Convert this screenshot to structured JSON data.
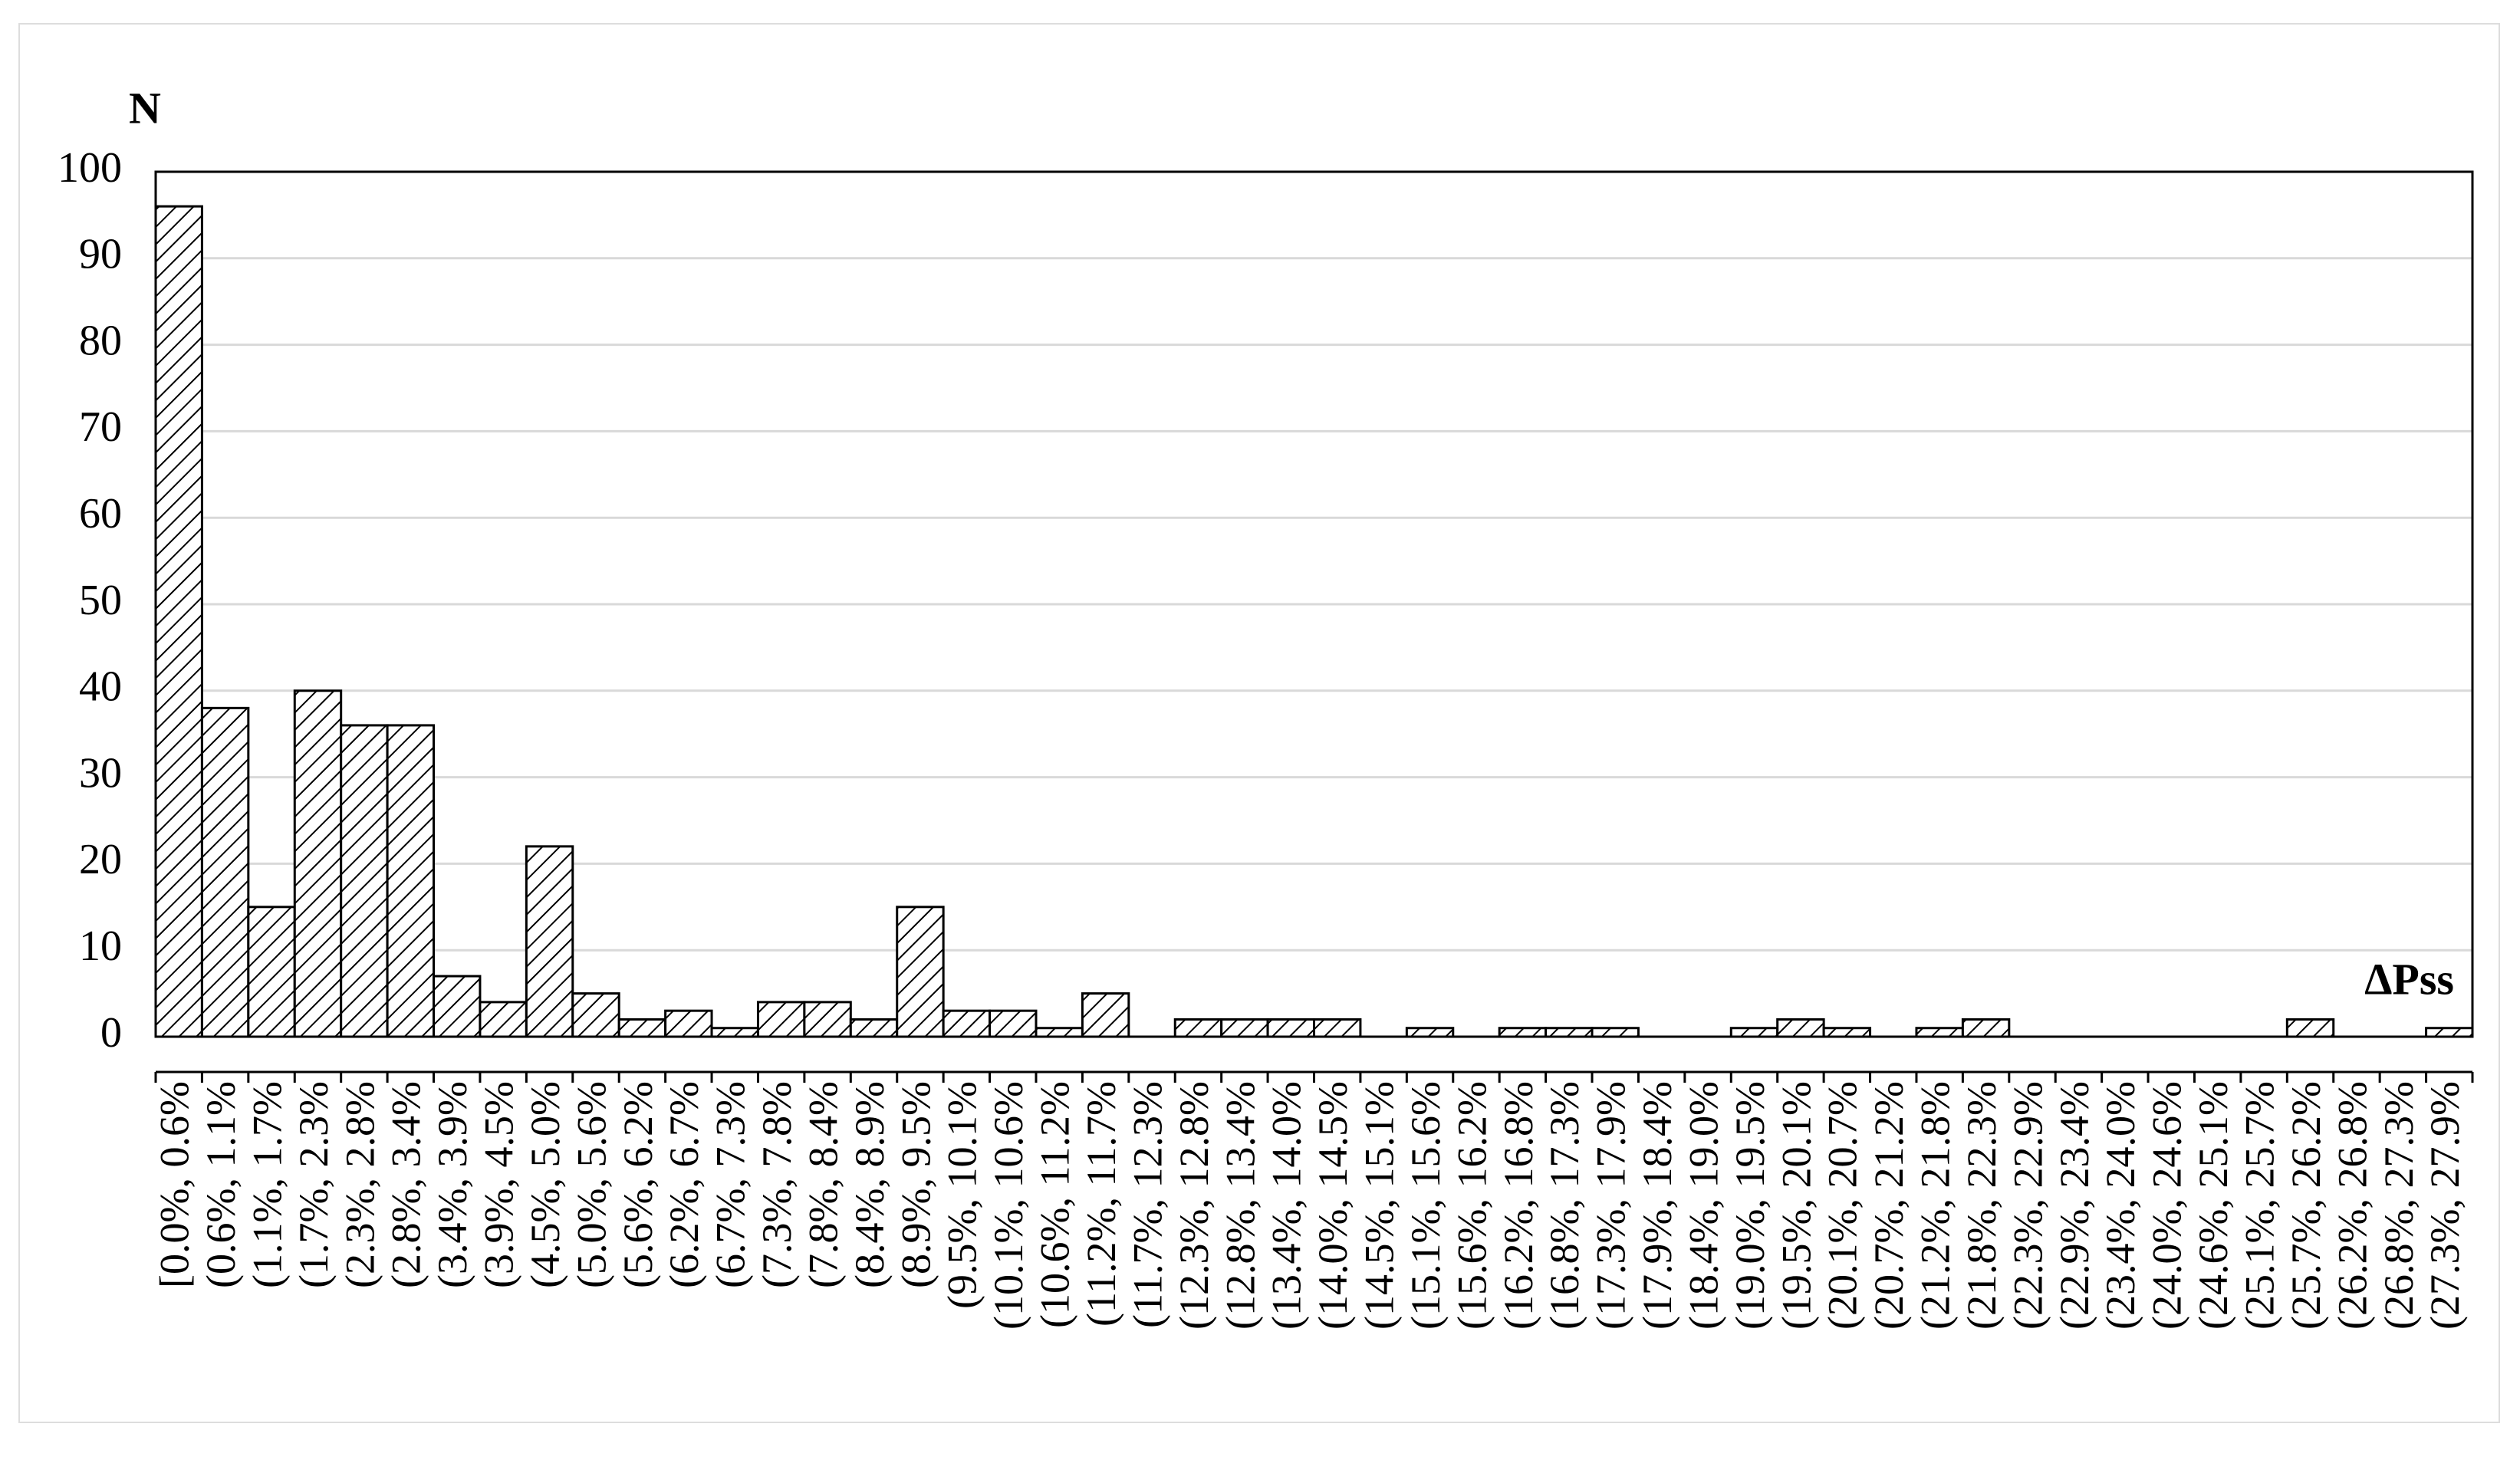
{
  "chart_data": {
    "type": "bar",
    "ylabel": "N",
    "xlabel": "ΔPss",
    "categories": [
      "[0.0%, 0.6%",
      "(0.6%, 1.1%",
      "(1.1%, 1.7%",
      "(1.7%, 2.3%",
      "(2.3%, 2.8%",
      "(2.8%, 3.4%",
      "(3.4%, 3.9%",
      "(3.9%, 4.5%",
      "(4.5%, 5.0%",
      "(5.0%, 5.6%",
      "(5.6%, 6.2%",
      "(6.2%, 6.7%",
      "(6.7%, 7.3%",
      "(7.3%, 7.8%",
      "(7.8%, 8.4%",
      "(8.4%, 8.9%",
      "(8.9%, 9.5%",
      "(9.5%, 10.1%",
      "(10.1%, 10.6%",
      "(10.6%, 11.2%",
      "(11.2%, 11.7%",
      "(11.7%, 12.3%",
      "(12.3%, 12.8%",
      "(12.8%, 13.4%",
      "(13.4%, 14.0%",
      "(14.0%, 14.5%",
      "(14.5%, 15.1%",
      "(15.1%, 15.6%",
      "(15.6%, 16.2%",
      "(16.2%, 16.8%",
      "(16.8%, 17.3%",
      "(17.3%, 17.9%",
      "(17.9%, 18.4%",
      "(18.4%, 19.0%",
      "(19.0%, 19.5%",
      "(19.5%, 20.1%",
      "(20.1%, 20.7%",
      "(20.7%, 21.2%",
      "(21.2%, 21.8%",
      "(21.8%, 22.3%",
      "(22.3%, 22.9%",
      "(22.9%, 23.4%",
      "(23.4%, 24.0%",
      "(24.0%, 24.6%",
      "(24.6%, 25.1%",
      "(25.1%, 25.7%",
      "(25.7%, 26.2%",
      "(26.2%, 26.8%",
      "(26.8%, 27.3%",
      "(27.3%, 27.9%"
    ],
    "values": [
      96,
      38,
      15,
      40,
      36,
      36,
      7,
      4,
      22,
      5,
      2,
      3,
      1,
      4,
      4,
      2,
      15,
      3,
      3,
      1,
      5,
      0,
      2,
      2,
      2,
      2,
      0,
      1,
      0,
      1,
      1,
      1,
      0,
      0,
      1,
      2,
      1,
      0,
      1,
      2,
      0,
      0,
      0,
      0,
      0,
      0,
      2,
      0,
      0,
      1
    ],
    "ylim": [
      0,
      100
    ],
    "yticks": [
      0,
      10,
      20,
      30,
      40,
      50,
      60,
      70,
      80,
      90,
      100
    ],
    "grid": true,
    "color": "#000000"
  }
}
